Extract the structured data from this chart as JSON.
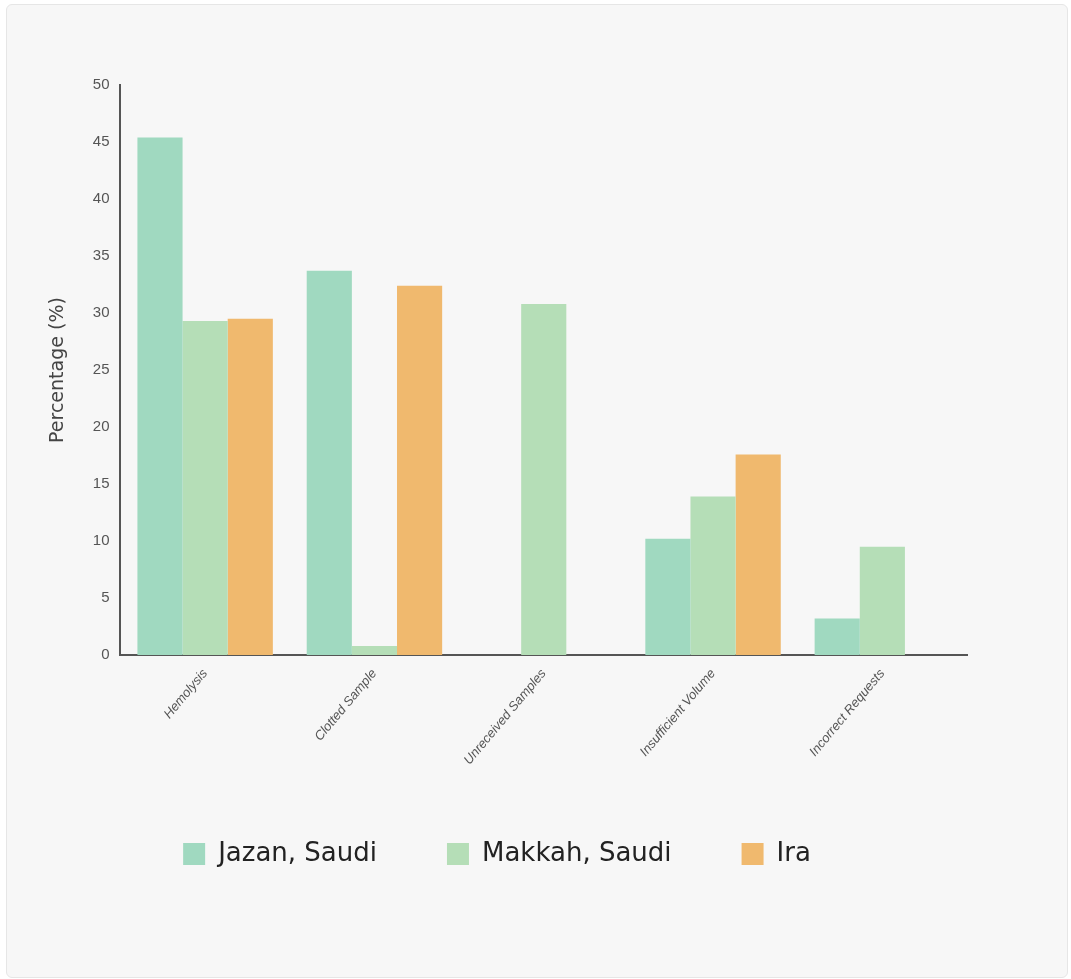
{
  "chart_data": {
    "type": "bar",
    "ylabel": "Percentage (%)",
    "categories": [
      "Hemolysis",
      "Clotted Sample",
      "Unreceived Samples",
      "Insufficient Volume",
      "Incorrect Requests"
    ],
    "series": [
      {
        "name": "Jazan, Saudi",
        "color": "#a0d9c0",
        "values": [
          45.4,
          33.7,
          null,
          10.2,
          3.2
        ]
      },
      {
        "name": "Makkah, Saudi",
        "color": "#b5deb7",
        "values": [
          29.3,
          0.8,
          30.8,
          13.9,
          9.5
        ]
      },
      {
        "name": "Ira",
        "color": "#f0b96e",
        "values": [
          29.5,
          32.4,
          null,
          17.6,
          null
        ]
      }
    ],
    "ylim": [
      0,
      50
    ],
    "yticks": [
      0,
      5,
      10,
      15,
      20,
      25,
      30,
      35,
      40,
      45,
      50
    ],
    "grid": false,
    "legend": "bottom"
  }
}
